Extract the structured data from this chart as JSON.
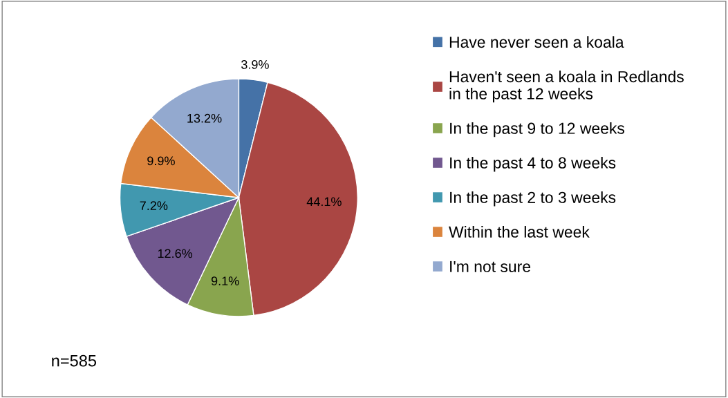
{
  "chart_data": {
    "type": "pie",
    "categories": [
      "Have never seen a koala",
      "Haven't seen a koala in Redlands in the past 12 weeks",
      "In the past 9 to 12 weeks",
      "In the past 4 to 8 weeks",
      "In the past 2 to 3 weeks",
      "Within the last week",
      "I'm not sure"
    ],
    "values": [
      3.9,
      44.1,
      9.1,
      12.6,
      7.2,
      9.9,
      13.2
    ],
    "colors": [
      "#4572a7",
      "#aa4643",
      "#89a54e",
      "#71588f",
      "#4198af",
      "#db843d",
      "#93a9cf"
    ],
    "value_labels": [
      "3.9%",
      "44.1%",
      "9.1%",
      "12.6%",
      "7.2%",
      "9.9%",
      "13.2%"
    ],
    "legend": "right",
    "annotations": [
      "n=585"
    ]
  }
}
